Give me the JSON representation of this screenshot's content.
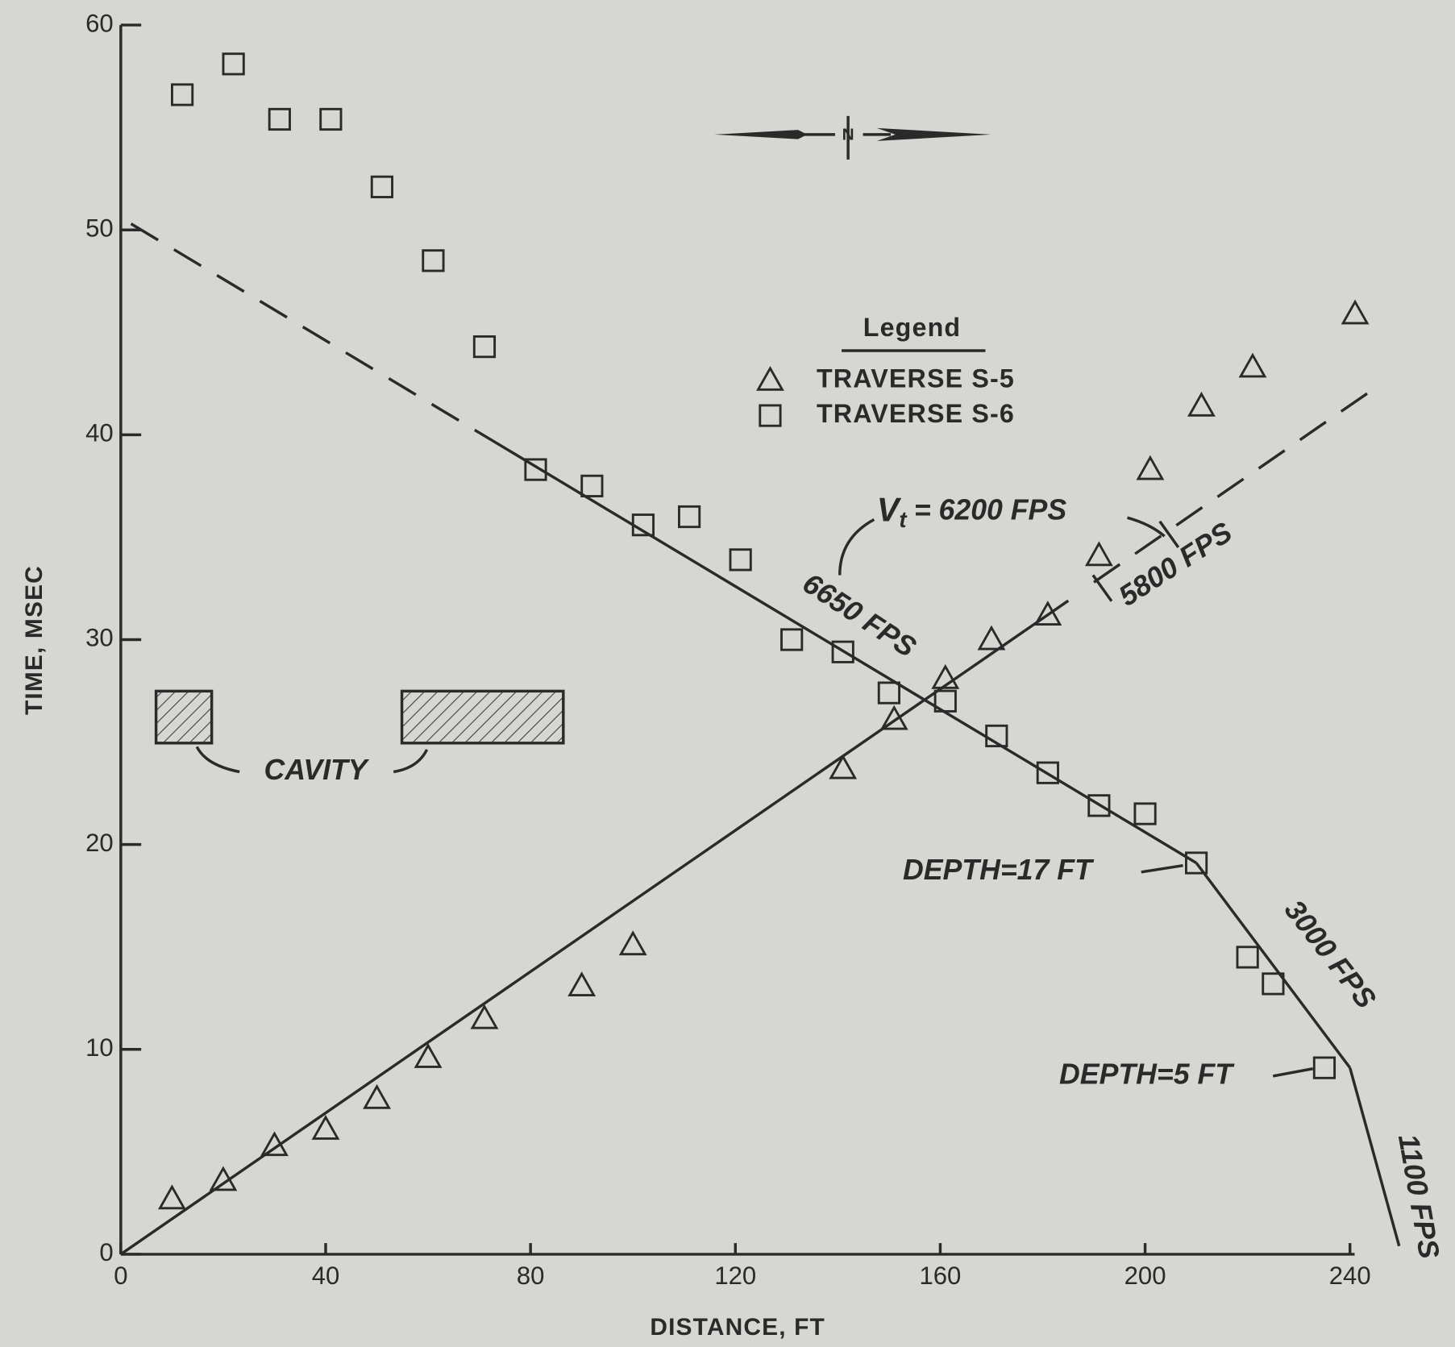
{
  "chart_data": {
    "type": "scatter",
    "x_label": "DISTANCE, FT",
    "y_label": "TIME, MSEC",
    "xlim": [
      0,
      240
    ],
    "ylim": [
      0,
      60
    ],
    "xticks": [
      0,
      40,
      80,
      120,
      160,
      200,
      240
    ],
    "yticks": [
      0,
      10,
      20,
      30,
      40,
      50,
      60
    ],
    "color": "#2a2a2a",
    "legend_title": "Legend",
    "legend_position": "upper right",
    "north_label": "N",
    "series": [
      {
        "name": "TRAVERSE S-5",
        "marker": "triangle",
        "x": [
          10,
          20,
          30,
          40,
          50,
          60,
          71,
          90,
          100,
          141,
          151,
          161,
          170,
          181,
          191,
          201,
          211,
          221,
          241
        ],
        "values": [
          2.7,
          3.6,
          5.3,
          6.1,
          7.6,
          9.6,
          11.5,
          13.1,
          15.1,
          23.7,
          26.1,
          28.1,
          30.0,
          31.2,
          34.1,
          38.3,
          41.4,
          43.3,
          45.9
        ]
      },
      {
        "name": "TRAVERSE S-6",
        "marker": "square",
        "x": [
          12,
          22,
          31,
          41,
          51,
          61,
          71,
          81,
          92,
          102,
          111,
          121,
          131,
          141,
          150,
          161,
          171,
          181,
          191,
          200,
          210,
          220,
          225,
          235
        ],
        "values": [
          56.6,
          58.1,
          55.4,
          55.4,
          52.1,
          48.5,
          44.3,
          38.3,
          37.5,
          35.6,
          36.0,
          33.9,
          30.0,
          29.4,
          27.4,
          27.0,
          25.3,
          23.5,
          21.9,
          21.5,
          19.1,
          14.5,
          13.2,
          9.1
        ]
      }
    ],
    "fit_lines": [
      {
        "style": "solid",
        "x": [
          0,
          185
        ],
        "y": [
          0,
          31.9
        ]
      },
      {
        "style": "dashed",
        "x": [
          190,
          245
        ],
        "y": [
          32.8,
          42.3
        ]
      },
      {
        "style": "dashed",
        "x": [
          2,
          70
        ],
        "y": [
          50.3,
          40.1
        ]
      },
      {
        "style": "solid",
        "x": [
          70,
          210
        ],
        "y": [
          40.1,
          19.1
        ]
      },
      {
        "style": "solid",
        "x": [
          210,
          240
        ],
        "y": [
          19.1,
          9.1
        ]
      },
      {
        "style": "solid",
        "x": [
          240,
          249.6
        ],
        "y": [
          9.1,
          0.4
        ]
      }
    ],
    "annotations": [
      "6650 FPS",
      "5800 FPS",
      "3000 FPS",
      "1100 FPS",
      "DEPTH=17 FT",
      "DEPTH=5 FT",
      "CAVITY"
    ],
    "velocity_label": {
      "symbol": "V",
      "subscript": "t",
      "text": "= 6200 FPS"
    }
  }
}
